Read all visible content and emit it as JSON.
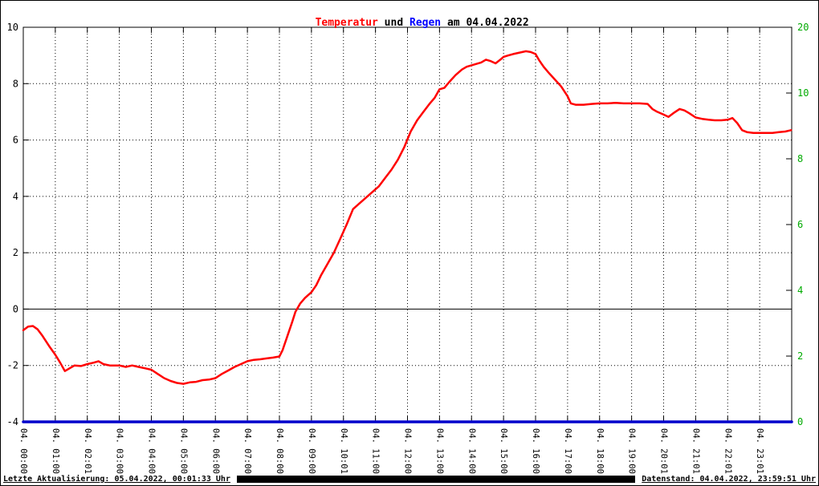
{
  "chart_data": {
    "type": "line",
    "title_segments": [
      {
        "text": "Temperatur",
        "color": "#ff0000"
      },
      {
        "text": " und ",
        "color": "#000000"
      },
      {
        "text": "Regen",
        "color": "#0000ff"
      },
      {
        "text": " am 04.04.2022",
        "color": "#000000"
      }
    ],
    "grid": true,
    "y_left": {
      "min": -4,
      "max": 10,
      "ticks": [
        -4,
        -2,
        0,
        2,
        4,
        6,
        8,
        10
      ],
      "color": "#000000"
    },
    "y_right": {
      "ticks": [
        0,
        2,
        4,
        6,
        8,
        10,
        20
      ],
      "color": "#00aa00"
    },
    "x_labels": [
      "04. 00:00",
      "04. 01:00",
      "04. 02:01",
      "04. 03:00",
      "04. 04:00",
      "04. 05:00",
      "04. 06:00",
      "04. 07:00",
      "04. 08:00",
      "04. 09:00",
      "04. 10:01",
      "04. 11:00",
      "04. 12:00",
      "04. 13:00",
      "04. 14:00",
      "04. 15:00",
      "04. 16:00",
      "04. 17:00",
      "04. 18:00",
      "04. 19:00",
      "04. 20:01",
      "04. 21:01",
      "04. 22:01",
      "04. 23:01"
    ],
    "series": [
      {
        "name": "Temperatur",
        "color": "#ff0000",
        "axis": "left",
        "width": 2.5,
        "points": [
          [
            0,
            -0.75
          ],
          [
            0.15,
            -0.62
          ],
          [
            0.3,
            -0.6
          ],
          [
            0.45,
            -0.72
          ],
          [
            0.6,
            -0.95
          ],
          [
            0.8,
            -1.3
          ],
          [
            1.0,
            -1.62
          ],
          [
            1.15,
            -1.9
          ],
          [
            1.3,
            -2.2
          ],
          [
            1.45,
            -2.1
          ],
          [
            1.6,
            -2.0
          ],
          [
            1.8,
            -2.02
          ],
          [
            2.0,
            -1.95
          ],
          [
            2.2,
            -1.9
          ],
          [
            2.35,
            -1.85
          ],
          [
            2.5,
            -1.95
          ],
          [
            2.7,
            -2.0
          ],
          [
            3.0,
            -2.0
          ],
          [
            3.2,
            -2.05
          ],
          [
            3.4,
            -2.0
          ],
          [
            3.6,
            -2.05
          ],
          [
            3.8,
            -2.1
          ],
          [
            4.0,
            -2.15
          ],
          [
            4.2,
            -2.3
          ],
          [
            4.4,
            -2.45
          ],
          [
            4.6,
            -2.55
          ],
          [
            4.8,
            -2.62
          ],
          [
            5.0,
            -2.65
          ],
          [
            5.2,
            -2.6
          ],
          [
            5.4,
            -2.58
          ],
          [
            5.6,
            -2.52
          ],
          [
            5.8,
            -2.5
          ],
          [
            6.0,
            -2.45
          ],
          [
            6.2,
            -2.3
          ],
          [
            6.4,
            -2.18
          ],
          [
            6.6,
            -2.05
          ],
          [
            6.8,
            -1.95
          ],
          [
            7.0,
            -1.85
          ],
          [
            7.2,
            -1.8
          ],
          [
            7.4,
            -1.78
          ],
          [
            7.6,
            -1.75
          ],
          [
            7.8,
            -1.72
          ],
          [
            8.0,
            -1.68
          ],
          [
            8.1,
            -1.45
          ],
          [
            8.25,
            -0.95
          ],
          [
            8.4,
            -0.45
          ],
          [
            8.5,
            -0.1
          ],
          [
            8.65,
            0.2
          ],
          [
            8.8,
            0.4
          ],
          [
            9.0,
            0.6
          ],
          [
            9.15,
            0.85
          ],
          [
            9.3,
            1.2
          ],
          [
            9.5,
            1.6
          ],
          [
            9.7,
            2.0
          ],
          [
            9.9,
            2.5
          ],
          [
            10.1,
            3.0
          ],
          [
            10.3,
            3.55
          ],
          [
            10.5,
            3.75
          ],
          [
            10.7,
            3.95
          ],
          [
            10.9,
            4.15
          ],
          [
            11.1,
            4.35
          ],
          [
            11.3,
            4.65
          ],
          [
            11.5,
            4.95
          ],
          [
            11.7,
            5.3
          ],
          [
            11.9,
            5.75
          ],
          [
            12.1,
            6.3
          ],
          [
            12.3,
            6.7
          ],
          [
            12.5,
            7.0
          ],
          [
            12.7,
            7.3
          ],
          [
            12.85,
            7.5
          ],
          [
            13.0,
            7.8
          ],
          [
            13.15,
            7.85
          ],
          [
            13.3,
            8.05
          ],
          [
            13.5,
            8.3
          ],
          [
            13.7,
            8.5
          ],
          [
            13.85,
            8.6
          ],
          [
            14.0,
            8.65
          ],
          [
            14.15,
            8.7
          ],
          [
            14.3,
            8.75
          ],
          [
            14.45,
            8.85
          ],
          [
            14.6,
            8.8
          ],
          [
            14.75,
            8.72
          ],
          [
            14.9,
            8.85
          ],
          [
            15.0,
            8.95
          ],
          [
            15.15,
            9.0
          ],
          [
            15.3,
            9.05
          ],
          [
            15.5,
            9.1
          ],
          [
            15.7,
            9.15
          ],
          [
            15.85,
            9.12
          ],
          [
            16.0,
            9.05
          ],
          [
            16.1,
            8.85
          ],
          [
            16.25,
            8.6
          ],
          [
            16.4,
            8.4
          ],
          [
            16.6,
            8.15
          ],
          [
            16.8,
            7.9
          ],
          [
            17.0,
            7.55
          ],
          [
            17.1,
            7.3
          ],
          [
            17.25,
            7.25
          ],
          [
            17.5,
            7.25
          ],
          [
            17.75,
            7.28
          ],
          [
            18.0,
            7.3
          ],
          [
            18.25,
            7.3
          ],
          [
            18.5,
            7.32
          ],
          [
            18.75,
            7.3
          ],
          [
            19.0,
            7.3
          ],
          [
            19.25,
            7.3
          ],
          [
            19.5,
            7.28
          ],
          [
            19.65,
            7.1
          ],
          [
            19.8,
            7.0
          ],
          [
            20.0,
            6.9
          ],
          [
            20.15,
            6.82
          ],
          [
            20.3,
            6.95
          ],
          [
            20.5,
            7.1
          ],
          [
            20.65,
            7.05
          ],
          [
            20.8,
            6.95
          ],
          [
            21.0,
            6.8
          ],
          [
            21.2,
            6.75
          ],
          [
            21.4,
            6.72
          ],
          [
            21.6,
            6.7
          ],
          [
            21.8,
            6.7
          ],
          [
            22.0,
            6.72
          ],
          [
            22.15,
            6.78
          ],
          [
            22.3,
            6.6
          ],
          [
            22.45,
            6.35
          ],
          [
            22.6,
            6.28
          ],
          [
            22.8,
            6.25
          ],
          [
            23.0,
            6.25
          ],
          [
            23.2,
            6.25
          ],
          [
            23.4,
            6.25
          ],
          [
            23.6,
            6.28
          ],
          [
            23.8,
            6.3
          ],
          [
            23.98,
            6.35
          ]
        ]
      },
      {
        "name": "Regen",
        "color": "#0000cc",
        "axis": "right",
        "width": 3.5,
        "points": [
          [
            0,
            0
          ],
          [
            24,
            0
          ]
        ]
      }
    ]
  },
  "footer": {
    "left": "Letzte Aktualisierung: 05.04.2022, 00:01:33 Uhr",
    "right": "Datenstand: 04.04.2022, 23:59:51 Uhr"
  }
}
